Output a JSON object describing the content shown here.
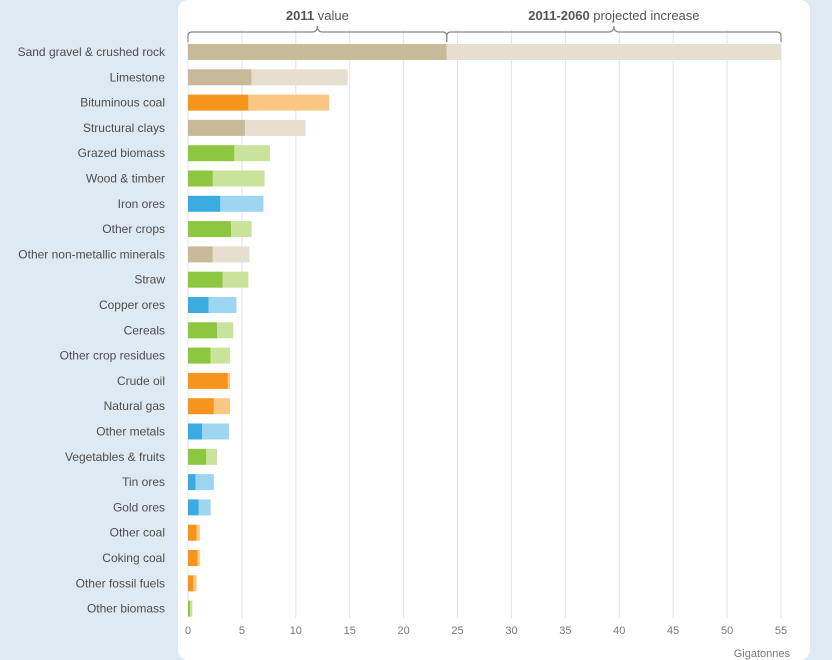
{
  "chart_data": {
    "type": "bar",
    "orientation": "horizontal",
    "stacked": true,
    "unit_label": "Gigatonnes",
    "annotations": [
      {
        "bold": "2011",
        "text": " value"
      },
      {
        "bold": "2011-2060",
        "text": " projected increase"
      }
    ],
    "xlim": [
      0,
      55
    ],
    "x_ticks": [
      0,
      5,
      10,
      15,
      20,
      25,
      30,
      35,
      40,
      45,
      50,
      55
    ],
    "grid": true,
    "categories": [
      "Sand gravel & crushed rock",
      "Limestone",
      "Bituminous coal",
      "Structural clays",
      "Grazed biomass",
      "Wood & timber",
      "Iron ores",
      "Other crops",
      "Other non-metallic minerals",
      "Straw",
      "Copper ores",
      "Cereals",
      "Other crop residues",
      "Crude oil",
      "Natural gas",
      "Other metals",
      "Vegetables & fruits",
      "Tin ores",
      "Gold ores",
      "Other coal",
      "Coking coal",
      "Other fossil fuels",
      "Other biomass"
    ],
    "groups": [
      "non-metallic",
      "non-metallic",
      "fossil",
      "non-metallic",
      "biomass",
      "biomass",
      "metal",
      "biomass",
      "non-metallic",
      "biomass",
      "metal",
      "biomass",
      "biomass",
      "fossil",
      "fossil",
      "metal",
      "biomass",
      "metal",
      "metal",
      "fossil",
      "fossil",
      "fossil",
      "biomass"
    ],
    "series": [
      {
        "name": "2011 value",
        "values": [
          24.0,
          5.9,
          5.6,
          5.3,
          4.3,
          2.3,
          3.0,
          4.0,
          2.3,
          3.2,
          1.9,
          2.7,
          2.1,
          3.7,
          2.4,
          1.3,
          1.7,
          0.7,
          1.0,
          0.8,
          0.9,
          0.5,
          0.2
        ]
      },
      {
        "name": "2011-2060 projected increase",
        "values": [
          31.0,
          8.9,
          7.5,
          5.6,
          3.3,
          4.8,
          4.0,
          1.9,
          3.4,
          2.4,
          2.6,
          1.5,
          1.8,
          0.2,
          1.5,
          2.5,
          1.0,
          1.7,
          1.1,
          0.3,
          0.2,
          0.3,
          0.2
        ]
      }
    ],
    "colors": {
      "non-metallic": {
        "base": "#c8b99a",
        "increase": "#e6dece"
      },
      "fossil": {
        "base": "#f7941d",
        "increase": "#fac883"
      },
      "biomass": {
        "base": "#8dc63f",
        "increase": "#c9e39b"
      },
      "metal": {
        "base": "#3aace2",
        "increase": "#9ed6f2"
      }
    }
  }
}
